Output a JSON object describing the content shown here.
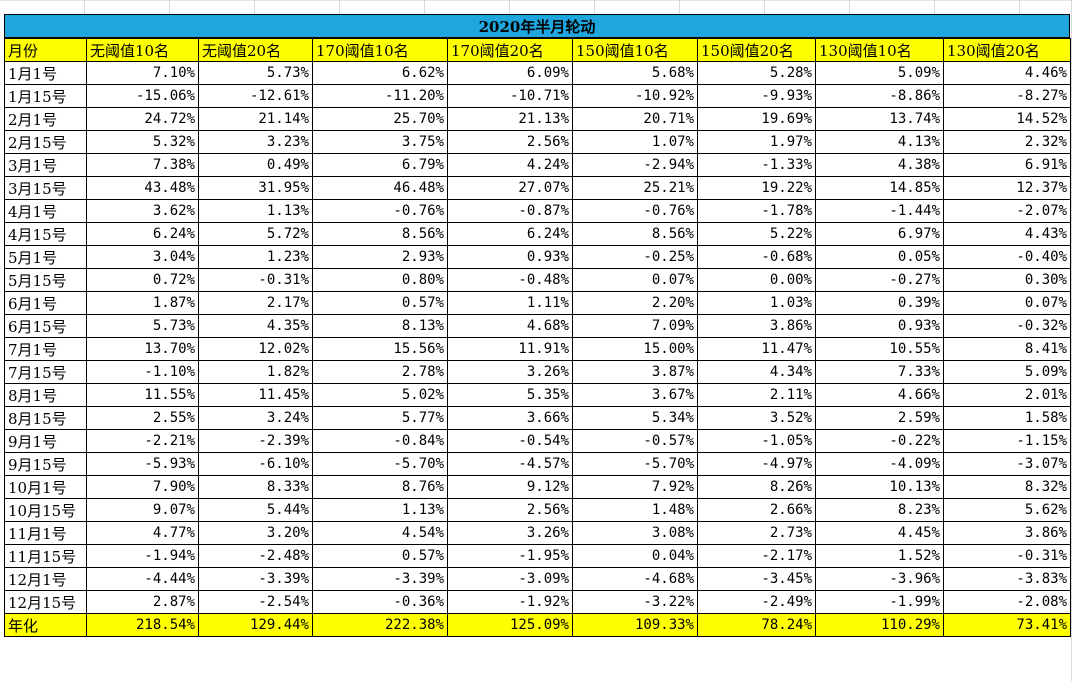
{
  "title": "2020年半月轮动",
  "headers": [
    "月份",
    "无阈值10名",
    "无阈值20名",
    "170阈值10名",
    "170阈值20名",
    "150阈值10名",
    "150阈值20名",
    "130阈值10名",
    "130阈值20名"
  ],
  "rows": [
    [
      "1月1号",
      "7.10%",
      "5.73%",
      "6.62%",
      "6.09%",
      "5.68%",
      "5.28%",
      "5.09%",
      "4.46%"
    ],
    [
      "1月15号",
      "-15.06%",
      "-12.61%",
      "-11.20%",
      "-10.71%",
      "-10.92%",
      "-9.93%",
      "-8.86%",
      "-8.27%"
    ],
    [
      "2月1号",
      "24.72%",
      "21.14%",
      "25.70%",
      "21.13%",
      "20.71%",
      "19.69%",
      "13.74%",
      "14.52%"
    ],
    [
      "2月15号",
      "5.32%",
      "3.23%",
      "3.75%",
      "2.56%",
      "1.07%",
      "1.97%",
      "4.13%",
      "2.32%"
    ],
    [
      "3月1号",
      "7.38%",
      "0.49%",
      "6.79%",
      "4.24%",
      "-2.94%",
      "-1.33%",
      "4.38%",
      "6.91%"
    ],
    [
      "3月15号",
      "43.48%",
      "31.95%",
      "46.48%",
      "27.07%",
      "25.21%",
      "19.22%",
      "14.85%",
      "12.37%"
    ],
    [
      "4月1号",
      "3.62%",
      "1.13%",
      "-0.76%",
      "-0.87%",
      "-0.76%",
      "-1.78%",
      "-1.44%",
      "-2.07%"
    ],
    [
      "4月15号",
      "6.24%",
      "5.72%",
      "8.56%",
      "6.24%",
      "8.56%",
      "5.22%",
      "6.97%",
      "4.43%"
    ],
    [
      "5月1号",
      "3.04%",
      "1.23%",
      "2.93%",
      "0.93%",
      "-0.25%",
      "-0.68%",
      "0.05%",
      "-0.40%"
    ],
    [
      "5月15号",
      "0.72%",
      "-0.31%",
      "0.80%",
      "-0.48%",
      "0.07%",
      "0.00%",
      "-0.27%",
      "0.30%"
    ],
    [
      "6月1号",
      "1.87%",
      "2.17%",
      "0.57%",
      "1.11%",
      "2.20%",
      "1.03%",
      "0.39%",
      "0.07%"
    ],
    [
      "6月15号",
      "5.73%",
      "4.35%",
      "8.13%",
      "4.68%",
      "7.09%",
      "3.86%",
      "0.93%",
      "-0.32%"
    ],
    [
      "7月1号",
      "13.70%",
      "12.02%",
      "15.56%",
      "11.91%",
      "15.00%",
      "11.47%",
      "10.55%",
      "8.41%"
    ],
    [
      "7月15号",
      "-1.10%",
      "1.82%",
      "2.78%",
      "3.26%",
      "3.87%",
      "4.34%",
      "7.33%",
      "5.09%"
    ],
    [
      "8月1号",
      "11.55%",
      "11.45%",
      "5.02%",
      "5.35%",
      "3.67%",
      "2.11%",
      "4.66%",
      "2.01%"
    ],
    [
      "8月15号",
      "2.55%",
      "3.24%",
      "5.77%",
      "3.66%",
      "5.34%",
      "3.52%",
      "2.59%",
      "1.58%"
    ],
    [
      "9月1号",
      "-2.21%",
      "-2.39%",
      "-0.84%",
      "-0.54%",
      "-0.57%",
      "-1.05%",
      "-0.22%",
      "-1.15%"
    ],
    [
      "9月15号",
      "-5.93%",
      "-6.10%",
      "-5.70%",
      "-4.57%",
      "-5.70%",
      "-4.97%",
      "-4.09%",
      "-3.07%"
    ],
    [
      "10月1号",
      "7.90%",
      "8.33%",
      "8.76%",
      "9.12%",
      "7.92%",
      "8.26%",
      "10.13%",
      "8.32%"
    ],
    [
      "10月15号",
      "9.07%",
      "5.44%",
      "1.13%",
      "2.56%",
      "1.48%",
      "2.66%",
      "8.23%",
      "5.62%"
    ],
    [
      "11月1号",
      "4.77%",
      "3.20%",
      "4.54%",
      "3.26%",
      "3.08%",
      "2.73%",
      "4.45%",
      "3.86%"
    ],
    [
      "11月15号",
      "-1.94%",
      "-2.48%",
      "0.57%",
      "-1.95%",
      "0.04%",
      "-2.17%",
      "1.52%",
      "-0.31%"
    ],
    [
      "12月1号",
      "-4.44%",
      "-3.39%",
      "-3.39%",
      "-3.09%",
      "-4.68%",
      "-3.45%",
      "-3.96%",
      "-3.83%"
    ],
    [
      "12月15号",
      "2.87%",
      "-2.54%",
      "-0.36%",
      "-1.92%",
      "-3.22%",
      "-2.49%",
      "-1.99%",
      "-2.08%"
    ]
  ],
  "total": [
    "年化",
    "218.54%",
    "129.44%",
    "222.38%",
    "125.09%",
    "109.33%",
    "78.24%",
    "110.29%",
    "73.41%"
  ],
  "colors": {
    "title_bg": "#1fa6df",
    "header_bg": "#ffff00",
    "total_bg": "#ffff00"
  }
}
